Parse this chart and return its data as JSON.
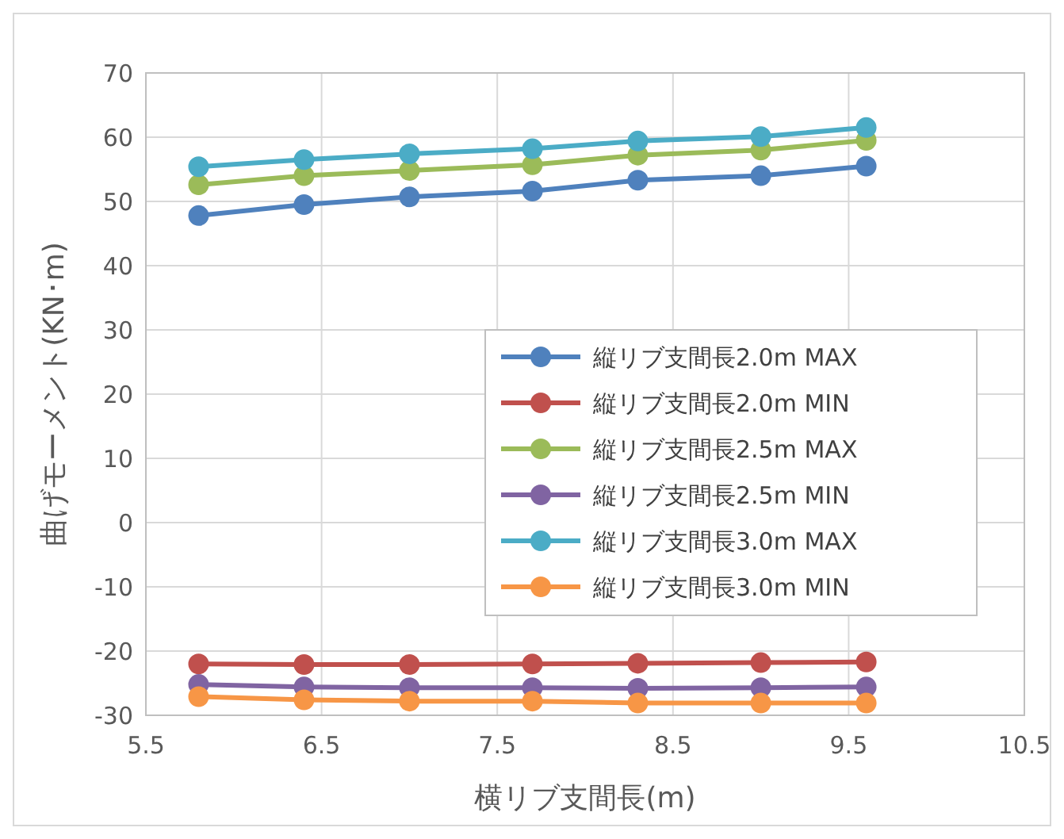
{
  "chart_data": {
    "type": "line",
    "xlabel": "横リブ支間長(m)",
    "ylabel": "曲げモーメント(KN･m)",
    "x": [
      5.8,
      6.4,
      7.0,
      7.7,
      8.3,
      9.0,
      9.6
    ],
    "xlim": [
      5.5,
      10.5
    ],
    "xticks": [
      5.5,
      6.5,
      7.5,
      8.5,
      9.5,
      10.5
    ],
    "ylim": [
      -30,
      70
    ],
    "yticks": [
      -30,
      -20,
      -10,
      0,
      10,
      20,
      30,
      40,
      50,
      60,
      70
    ],
    "grid": true,
    "legend": "right",
    "marker": "circle",
    "line_style": "solid",
    "series": [
      {
        "name": "縦リブ支間長2.0m MAX",
        "color": "#4f81bd",
        "values": [
          47.8,
          49.5,
          50.7,
          51.6,
          53.3,
          54.0,
          55.5
        ]
      },
      {
        "name": "縦リブ支間長2.0m MIN",
        "color": "#c0504d",
        "values": [
          -22.0,
          -22.1,
          -22.1,
          -22.0,
          -21.9,
          -21.8,
          -21.7
        ]
      },
      {
        "name": "縦リブ支間長2.5m MAX",
        "color": "#9bbb59",
        "values": [
          52.6,
          54.0,
          54.8,
          55.7,
          57.2,
          58.0,
          59.5
        ]
      },
      {
        "name": "縦リブ支間長2.5m MIN",
        "color": "#8064a2",
        "values": [
          -25.2,
          -25.6,
          -25.7,
          -25.7,
          -25.8,
          -25.7,
          -25.6
        ]
      },
      {
        "name": "縦リブ支間長3.0m MAX",
        "color": "#4bacc6",
        "values": [
          55.4,
          56.5,
          57.4,
          58.2,
          59.4,
          60.1,
          61.5
        ]
      },
      {
        "name": "縦リブ支間長3.0m MIN",
        "color": "#f79646",
        "values": [
          -27.1,
          -27.6,
          -27.8,
          -27.8,
          -28.1,
          -28.1,
          -28.1
        ]
      }
    ]
  }
}
